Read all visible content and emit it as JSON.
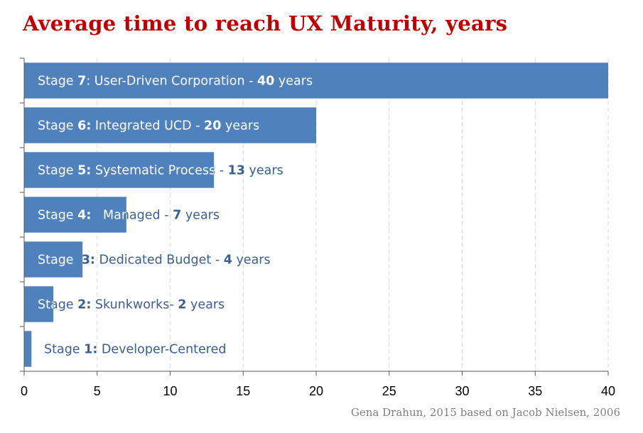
{
  "title": "Average time to reach UX Maturity, years",
  "credit": "Gena Drahun, 2015 based on Jacob Nielsen, 2006",
  "colors": {
    "title": "#c00000",
    "bar": "#4f81bd",
    "label_on_bar": "#ffffff",
    "label_off_bar": "#3a5f95"
  },
  "chart_data": {
    "type": "bar",
    "orientation": "horizontal",
    "title": "Average time to reach UX Maturity, years",
    "xlim": [
      0,
      40
    ],
    "xticks": [
      0,
      5,
      10,
      15,
      20,
      25,
      30,
      35,
      40
    ],
    "grid": "vertical dashed",
    "categories": [
      "Stage 7: User-Driven Corporation - 40 years",
      "Stage 6: Integrated UCD - 20 years",
      "Stage 5: Systematic Process - 13 years",
      "Stage 4:   Managed - 7 years",
      "Stage 3: Dedicated Budget - 4 years",
      "Stage 2: Skunkworks- 2 years",
      "Stage 1: Developer-Centered"
    ],
    "values": [
      40,
      20,
      13,
      7,
      4,
      2,
      0.5
    ],
    "labels": [
      [
        {
          "t": "Stage "
        },
        {
          "t": "7",
          "b": true
        },
        {
          "t": ": User-Driven Corporation - "
        },
        {
          "t": "40",
          "b": true
        },
        {
          "t": " years"
        }
      ],
      [
        {
          "t": "Stage "
        },
        {
          "t": "6:",
          "b": true
        },
        {
          "t": " Integrated UCD - "
        },
        {
          "t": "20",
          "b": true
        },
        {
          "t": " years"
        }
      ],
      [
        {
          "t": "Stage "
        },
        {
          "t": "5:",
          "b": true
        },
        {
          "t": " Systematic Process - "
        },
        {
          "t": "13",
          "b": true
        },
        {
          "t": " years"
        }
      ],
      [
        {
          "t": "Stage "
        },
        {
          "t": "4:",
          "b": true
        },
        {
          "t": "   Managed - "
        },
        {
          "t": "7",
          "b": true
        },
        {
          "t": " years"
        }
      ],
      [
        {
          "t": "Stage  "
        },
        {
          "t": "3:",
          "b": true
        },
        {
          "t": " Dedicated Budget - "
        },
        {
          "t": "4",
          "b": true
        },
        {
          "t": " years"
        }
      ],
      [
        {
          "t": "Stage "
        },
        {
          "t": "2:",
          "b": true
        },
        {
          "t": " Skunkworks- "
        },
        {
          "t": "2",
          "b": true
        },
        {
          "t": " years"
        }
      ],
      [
        {
          "t": "Stage "
        },
        {
          "t": "1:",
          "b": true
        },
        {
          "t": " Developer-Centered"
        }
      ]
    ]
  }
}
